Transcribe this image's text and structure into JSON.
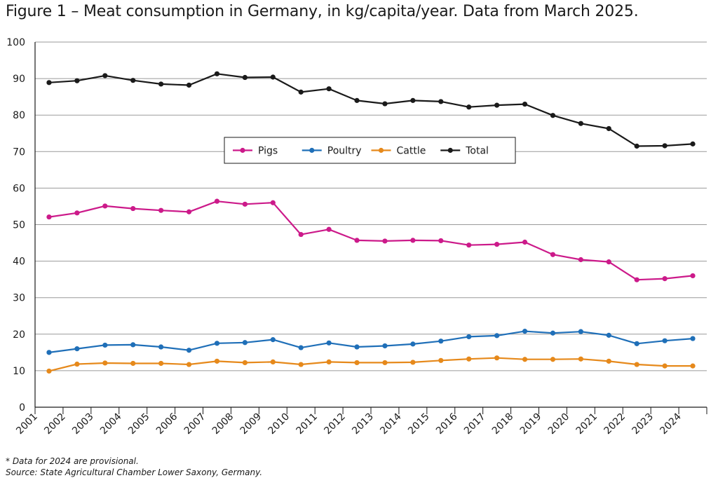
{
  "figure": {
    "title": "Figure 1 – Meat consumption in Germany, in kg/capita/year. Data from March 2025.",
    "footnote": "* Data for 2024 are provisional.",
    "source": "Source: State Agricultural Chamber Lower Saxony, Germany."
  },
  "chart_data": {
    "type": "line",
    "x": [
      2001,
      2002,
      2003,
      2004,
      2005,
      2006,
      2007,
      2008,
      2009,
      2010,
      2011,
      2012,
      2013,
      2014,
      2015,
      2016,
      2017,
      2018,
      2019,
      2020,
      2021,
      2022,
      2023,
      2024
    ],
    "x_tick_labels": [
      "2001",
      "2002",
      "2003",
      "2004",
      "2005",
      "2006",
      "2007",
      "2008",
      "2009",
      "2010",
      "2011",
      "2012",
      "2013",
      "2014",
      "2015",
      "2016",
      "2017",
      "2018",
      "2019",
      "2020",
      "2021",
      "2022",
      "2023",
      "2024"
    ],
    "y_ticks": [
      0,
      10,
      20,
      30,
      40,
      50,
      60,
      70,
      80,
      90,
      100
    ],
    "ylim": [
      0,
      100
    ],
    "grid": "horizontal",
    "legend_position": "center",
    "series": [
      {
        "name": "Pigs",
        "color": "#cc1a8a",
        "values": [
          52.1,
          53.2,
          55.1,
          54.4,
          53.9,
          53.5,
          56.4,
          55.6,
          56.0,
          47.3,
          48.7,
          45.7,
          45.5,
          45.7,
          45.6,
          44.4,
          44.6,
          45.2,
          41.8,
          40.4,
          39.8,
          34.9,
          35.2,
          36.0
        ]
      },
      {
        "name": "Poultry",
        "color": "#1f6fb8",
        "values": [
          15.0,
          16.0,
          17.0,
          17.1,
          16.5,
          15.6,
          17.5,
          17.7,
          18.5,
          16.3,
          17.6,
          16.5,
          16.8,
          17.3,
          18.1,
          19.3,
          19.6,
          20.8,
          20.3,
          20.7,
          19.7,
          17.4,
          18.2,
          18.8
        ]
      },
      {
        "name": "Cattle",
        "color": "#e6891b",
        "values": [
          9.9,
          11.8,
          12.1,
          12.0,
          12.0,
          11.7,
          12.6,
          12.2,
          12.4,
          11.7,
          12.4,
          12.2,
          12.2,
          12.3,
          12.8,
          13.2,
          13.5,
          13.1,
          13.1,
          13.2,
          12.6,
          11.7,
          11.3,
          11.3
        ]
      },
      {
        "name": "Total",
        "color": "#1a1a1a",
        "values": [
          88.9,
          89.4,
          90.8,
          89.5,
          88.5,
          88.2,
          91.3,
          90.3,
          90.4,
          86.3,
          87.2,
          84.0,
          83.1,
          84.0,
          83.7,
          82.2,
          82.7,
          83.0,
          79.9,
          77.7,
          76.3,
          71.5,
          71.6,
          72.1
        ]
      }
    ]
  }
}
